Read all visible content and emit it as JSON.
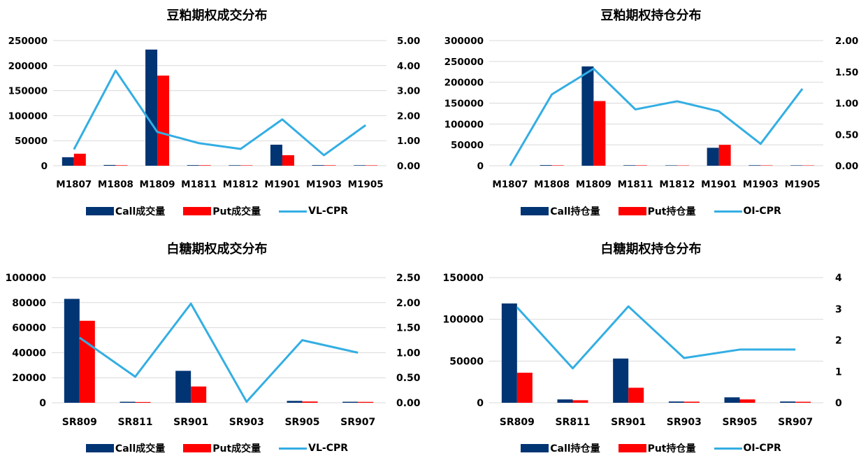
{
  "colors": {
    "call": "#003473",
    "put": "#ff0000",
    "line": "#33aee3",
    "grid": "#d9d9d9"
  },
  "chart_data": [
    {
      "type": "bar",
      "title": "豆粕期权成交分布",
      "categories": [
        "M1807",
        "M1808",
        "M1809",
        "M1811",
        "M1812",
        "M1901",
        "M1903",
        "M1905"
      ],
      "series": [
        {
          "name": "Call成交量",
          "kind": "bar",
          "values": [
            17000,
            1500,
            232000,
            1200,
            1000,
            42000,
            1200,
            1000
          ]
        },
        {
          "name": "Put成交量",
          "kind": "bar",
          "values": [
            24000,
            1000,
            180000,
            1000,
            800,
            21000,
            900,
            800
          ]
        },
        {
          "name": "VL-CPR",
          "kind": "line",
          "axis": "right",
          "values": [
            0.65,
            3.8,
            1.35,
            0.9,
            0.67,
            1.85,
            0.42,
            1.62
          ]
        }
      ],
      "left_ticks": [
        "0",
        "50000",
        "100000",
        "150000",
        "200000",
        "250000"
      ],
      "right_ticks": [
        "0.00",
        "1.00",
        "2.00",
        "3.00",
        "4.00",
        "5.00"
      ],
      "ylim": [
        0,
        250000
      ],
      "y2lim": [
        0,
        5
      ],
      "grid": true,
      "legend": "bottom"
    },
    {
      "type": "bar",
      "title": "豆粕期权持仓分布",
      "categories": [
        "M1807",
        "M1808",
        "M1809",
        "M1811",
        "M1812",
        "M1901",
        "M1903",
        "M1905"
      ],
      "series": [
        {
          "name": "Call持仓量",
          "kind": "bar",
          "values": [
            0,
            1500,
            238000,
            1200,
            1000,
            43000,
            1200,
            1000
          ]
        },
        {
          "name": "Put持仓量",
          "kind": "bar",
          "values": [
            0,
            1000,
            155000,
            1000,
            800,
            50000,
            900,
            800
          ]
        },
        {
          "name": "OI-CPR",
          "kind": "line",
          "axis": "right",
          "values": [
            0,
            1.14,
            1.55,
            0.9,
            1.03,
            0.87,
            0.35,
            1.23
          ]
        }
      ],
      "left_ticks": [
        "0",
        "50000",
        "100000",
        "150000",
        "200000",
        "250000",
        "300000"
      ],
      "right_ticks": [
        "0.00",
        "0.50",
        "1.00",
        "1.50",
        "2.00"
      ],
      "ylim": [
        0,
        300000
      ],
      "y2lim": [
        0,
        2
      ],
      "grid": true,
      "legend": "bottom"
    },
    {
      "type": "bar",
      "title": "白糖期权成交分布",
      "categories": [
        "SR809",
        "SR811",
        "SR901",
        "SR903",
        "SR905",
        "SR907"
      ],
      "series": [
        {
          "name": "Call成交量",
          "kind": "bar",
          "values": [
            83000,
            800,
            25500,
            0,
            1500,
            800
          ]
        },
        {
          "name": "Put成交量",
          "kind": "bar",
          "values": [
            65500,
            600,
            13000,
            0,
            1000,
            700
          ]
        },
        {
          "name": "VL-CPR",
          "kind": "line",
          "axis": "right",
          "values": [
            1.3,
            0.52,
            1.98,
            0.02,
            1.25,
            1.0
          ]
        }
      ],
      "left_ticks": [
        "0",
        "20000",
        "40000",
        "60000",
        "80000",
        "100000"
      ],
      "right_ticks": [
        "0.00",
        "0.50",
        "1.00",
        "1.50",
        "2.00",
        "2.50"
      ],
      "ylim": [
        0,
        100000
      ],
      "y2lim": [
        0,
        2.5
      ],
      "grid": true,
      "legend": "bottom"
    },
    {
      "type": "bar",
      "title": "白糖期权持仓分布",
      "categories": [
        "SR809",
        "SR811",
        "SR901",
        "SR903",
        "SR905",
        "SR907"
      ],
      "series": [
        {
          "name": "Call持仓量",
          "kind": "bar",
          "values": [
            119000,
            4000,
            53000,
            1500,
            6500,
            1500
          ]
        },
        {
          "name": "Put持仓量",
          "kind": "bar",
          "values": [
            36000,
            3000,
            18000,
            1300,
            4000,
            1200
          ]
        },
        {
          "name": "OI-CPR",
          "kind": "line",
          "axis": "right",
          "values": [
            3.05,
            1.1,
            3.08,
            1.43,
            1.7,
            1.7
          ]
        }
      ],
      "left_ticks": [
        "0",
        "50000",
        "100000",
        "150000"
      ],
      "right_ticks": [
        "0",
        "1",
        "2",
        "3",
        "4"
      ],
      "ylim": [
        0,
        150000
      ],
      "y2lim": [
        0,
        4
      ],
      "grid": true,
      "legend": "bottom"
    }
  ]
}
